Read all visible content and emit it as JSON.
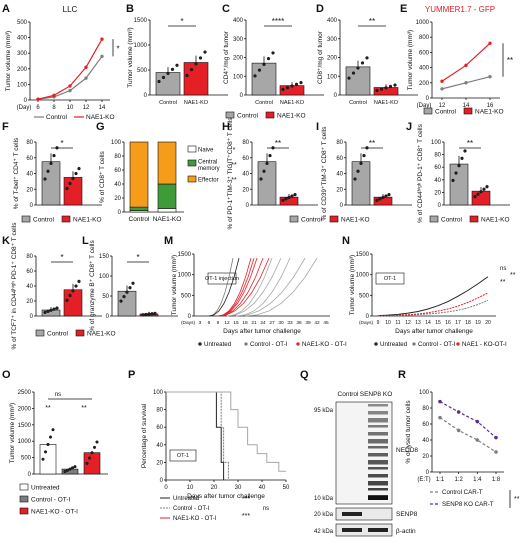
{
  "colors": {
    "red": "#e41f26",
    "gray": "#a7a7a7",
    "darkgray": "#7d7d7d",
    "purple": "#5d2e8c",
    "orange": "#f59c1b",
    "green": "#3f9b3a"
  },
  "legends": {
    "control": "Control",
    "ko": "NAE1-KO",
    "untreated": "Untreated",
    "control_oti": "Control - OT-I",
    "ko_oti": "NAE1-KO - OT-I",
    "m_untreated": "Untreated",
    "m_control": "Control - OT-I",
    "m_ko": "NAE1-KO - OT-I",
    "n_untreated": "Untreated",
    "n_control": "Control - OT-I",
    "n_ko": "NAE1 - KO-OT-I",
    "r_control": "Control CAR-T",
    "r_senp8": "SENP8 KO CAR-T",
    "g_naive": "Naive",
    "g_central1": "Central",
    "g_central2": "memory",
    "g_effector": "Effector"
  },
  "chart_data": [
    {
      "panel": "A",
      "type": "line",
      "title": "LLC",
      "ylabel": "Tumor volume (mm³)",
      "xlabel": "(Day)",
      "x": [
        6,
        8,
        10,
        12,
        14
      ],
      "ylim": [
        0,
        500
      ],
      "yticks": [
        0,
        100,
        200,
        300,
        400,
        500
      ],
      "series": [
        {
          "name": "Control",
          "values": [
            5,
            20,
            60,
            140,
            280
          ]
        },
        {
          "name": "NAE1-KO",
          "values": [
            5,
            30,
            90,
            210,
            390
          ]
        }
      ],
      "annotation": "*"
    },
    {
      "panel": "B",
      "type": "bar",
      "ylabel": "Tumor volume (mm³)",
      "categories": [
        "Control",
        "NAE1-KO"
      ],
      "values": [
        450,
        650
      ],
      "ylim": [
        0,
        1500
      ],
      "yticks": [
        0,
        500,
        1000,
        1500
      ],
      "annotation": "*"
    },
    {
      "panel": "C",
      "type": "bar",
      "ylabel": "CD4⁺/mg of tumor",
      "categories": [
        "Control",
        "NAE1-KO"
      ],
      "values": [
        170,
        50
      ],
      "ylim": [
        0,
        400
      ],
      "yticks": [
        0,
        100,
        200,
        300,
        400
      ],
      "annotation": "****"
    },
    {
      "panel": "D",
      "type": "bar",
      "ylabel": "CD8⁺/mg of tumor",
      "categories": [
        "Control",
        "NAE1-KO"
      ],
      "values": [
        150,
        40
      ],
      "ylim": [
        0,
        400
      ],
      "yticks": [
        0,
        100,
        200,
        300,
        400
      ],
      "annotation": "**"
    },
    {
      "panel": "E",
      "type": "line",
      "title": "YUMMER1.7 - GFP",
      "ylabel": "Tumor volume (mm³)",
      "xlabel": "(Day)",
      "x": [
        12,
        14,
        16
      ],
      "ylim": [
        0,
        1000
      ],
      "yticks": [
        0,
        200,
        400,
        600,
        800,
        1000
      ],
      "series": [
        {
          "name": "Control",
          "values": [
            120,
            200,
            280
          ]
        },
        {
          "name": "NAE1-KO",
          "values": [
            220,
            430,
            720
          ]
        }
      ],
      "annotation": "**"
    },
    {
      "panel": "F",
      "type": "bar",
      "ylabel": "% of T-bet⁺ CD4⁺ T cells",
      "categories": [
        "Control",
        "NAE1-KO"
      ],
      "values": [
        55,
        35
      ],
      "ylim": [
        0,
        80
      ],
      "yticks": [
        0,
        20,
        40,
        60,
        80
      ],
      "annotation": "*"
    },
    {
      "panel": "G",
      "type": "bar",
      "ylabel": "% of CD8⁺ T cells",
      "categories": [
        "Control",
        "NAE1-KO"
      ],
      "series": [
        {
          "name": "Naive",
          "values": [
            2,
            5
          ]
        },
        {
          "name": "Central memory",
          "values": [
            5,
            35
          ]
        },
        {
          "name": "Effector",
          "values": [
            93,
            60
          ]
        }
      ],
      "ylim": [
        0,
        100
      ],
      "yticks": [
        0,
        20,
        40,
        60,
        80,
        100
      ],
      "annotations": [
        "*",
        "**",
        "**"
      ]
    },
    {
      "panel": "H",
      "type": "bar",
      "ylabel": "% of PD-1⁺TIM-3⁺ TIGIT⁺CD8⁺ T cells",
      "categories": [
        "Control",
        "NAE1-KO"
      ],
      "values": [
        55,
        10
      ],
      "ylim": [
        0,
        80
      ],
      "yticks": [
        0,
        20,
        40,
        60,
        80
      ],
      "annotation": "**"
    },
    {
      "panel": "I",
      "type": "bar",
      "ylabel": "% of CD39⁺TIM-3⁺ CD8⁺ T cells",
      "categories": [
        "Control",
        "NAE1-KO"
      ],
      "values": [
        55,
        10
      ],
      "ylim": [
        0,
        80
      ],
      "yticks": [
        0,
        20,
        40,
        60,
        80
      ],
      "annotation": "**"
    },
    {
      "panel": "J",
      "type": "bar",
      "ylabel": "% of CD44ʰⁱᵍʰ PD-1⁺ CD8⁺ T cells",
      "categories": [
        "Control",
        "NAE1-KO"
      ],
      "values": [
        65,
        22
      ],
      "ylim": [
        0,
        100
      ],
      "yticks": [
        0,
        20,
        40,
        60,
        80,
        100
      ],
      "annotation": "**"
    },
    {
      "panel": "K",
      "type": "bar",
      "ylabel": "% of TCF7⁺ in CD44ʰⁱᵍʰ PD-1⁺ CD8⁺ T cells",
      "categories": [
        "Control",
        "NAE1-KO"
      ],
      "values": [
        8,
        35
      ],
      "ylim": [
        0,
        80
      ],
      "yticks": [
        0,
        20,
        40,
        60,
        80
      ],
      "annotation": "*"
    },
    {
      "panel": "L",
      "type": "bar",
      "ylabel": "% of granzyme B⁺ CD8⁺ T cells",
      "categories": [
        "Control",
        "NAE1-KO"
      ],
      "values": [
        62,
        5
      ],
      "ylim": [
        0,
        150
      ],
      "yticks": [
        0,
        50,
        100,
        150
      ],
      "annotation": "*"
    },
    {
      "panel": "M",
      "type": "line",
      "ylabel": "Tumor volume (mm³)",
      "xlabel": "Days after tumor challenge",
      "x": [
        3,
        6,
        9,
        12,
        15,
        18,
        21,
        24,
        27,
        30,
        33,
        36,
        39,
        42,
        45
      ],
      "ylim": [
        0,
        1500
      ],
      "yticks": [
        0,
        500,
        1000,
        1500
      ],
      "annotation": "OT-1 injection"
    },
    {
      "panel": "N",
      "type": "line",
      "ylabel": "Tumor volume (mm³)",
      "xlabel": "Days after tumor challenge",
      "x": [
        9,
        10,
        11,
        12,
        13,
        14,
        15,
        16,
        17,
        18,
        19,
        20
      ],
      "ylim": [
        0,
        1500
      ],
      "yticks": [
        0,
        500,
        1000,
        1500
      ],
      "series": [
        {
          "name": "Untreated",
          "values": [
            10,
            20,
            40,
            70,
            110,
            170,
            250,
            350,
            480,
            620,
            780,
            950
          ]
        },
        {
          "name": "Control - OT-I",
          "values": [
            5,
            10,
            15,
            25,
            35,
            50,
            70,
            100,
            140,
            200,
            280,
            380
          ]
        },
        {
          "name": "NAE1 - KO-OT-I",
          "values": [
            5,
            10,
            20,
            30,
            50,
            80,
            120,
            170,
            240,
            330,
            440,
            560
          ]
        }
      ],
      "annotations": [
        "ns",
        "**",
        "**"
      ]
    },
    {
      "panel": "O",
      "type": "bar",
      "ylabel": "Tumor volume (mm³)",
      "categories": [
        "Untreated",
        "Control - OT-I",
        "NAE1-KO - OT-I"
      ],
      "values": [
        900,
        150,
        650
      ],
      "ylim": [
        0,
        2500
      ],
      "yticks": [
        0,
        500,
        1000,
        1500,
        2000,
        2500
      ],
      "annotations": [
        "ns",
        "**",
        "**"
      ]
    },
    {
      "panel": "P",
      "type": "line",
      "ylabel": "Percentage of survival",
      "xlabel": "Days after tumor challenge",
      "x": [
        0,
        10,
        20,
        30,
        40,
        50
      ],
      "ylim": [
        0,
        100
      ],
      "yticks": [
        0,
        20,
        40,
        60,
        80,
        100
      ],
      "annotation": "OT-1 injection",
      "annotations": [
        "***",
        "***",
        "ns"
      ]
    },
    {
      "panel": "Q",
      "type": "table",
      "columns": [
        "Control",
        "SENP8 KO"
      ],
      "markers": [
        "95 kDa",
        "10 kDa",
        "20 kDa",
        "42 kDa"
      ],
      "labels": [
        "NEDD8",
        "SENP8",
        "β-actin"
      ]
    },
    {
      "panel": "R",
      "type": "line",
      "ylabel": "% of lysed tumor cells",
      "xlabel": "(E:T)",
      "categories": [
        "1:1",
        "1:2",
        "1:4",
        "1:8"
      ],
      "ylim": [
        0,
        100
      ],
      "yticks": [
        0,
        20,
        40,
        60,
        80,
        100
      ],
      "series": [
        {
          "name": "Control CAR-T",
          "values": [
            68,
            52,
            40,
            25
          ]
        },
        {
          "name": "SENP8 KO CAR-T",
          "values": [
            88,
            75,
            63,
            43
          ]
        }
      ],
      "annotation": "**"
    }
  ]
}
